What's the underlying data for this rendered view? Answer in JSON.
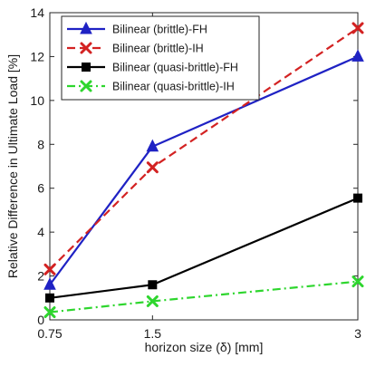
{
  "chart_data": {
    "type": "line",
    "xlabel": "horizon size (δ) [mm]",
    "ylabel": "Relative Difference in Ultimate Load [%]",
    "x": [
      0.75,
      1.5,
      3
    ],
    "x_tick_labels": [
      "0.75",
      "1.5",
      "3"
    ],
    "xlim": [
      0.75,
      3
    ],
    "ylim": [
      0,
      14
    ],
    "y_ticks": [
      0,
      2,
      4,
      6,
      8,
      10,
      12,
      14
    ],
    "y_tick_labels": [
      "0",
      "2",
      "4",
      "6",
      "8",
      "10",
      "12",
      "14"
    ],
    "grid": false,
    "legend_position": "top-left",
    "series": [
      {
        "name": "Bilinear (brittle)-FH",
        "values": [
          1.6,
          7.9,
          12.0
        ],
        "color": "#1f22c4",
        "line_style": "solid",
        "marker": "triangle"
      },
      {
        "name": "Bilinear (brittle)-IH",
        "values": [
          2.3,
          6.95,
          13.3
        ],
        "color": "#d32222",
        "line_style": "dashed",
        "marker": "x"
      },
      {
        "name": "Bilinear (quasi-brittle)-FH",
        "values": [
          1.0,
          1.6,
          5.55
        ],
        "color": "#000000",
        "line_style": "solid",
        "marker": "square"
      },
      {
        "name": "Bilinear (quasi-brittle)-IH",
        "values": [
          0.35,
          0.85,
          1.75
        ],
        "color": "#2ed62e",
        "line_style": "dashdot",
        "marker": "x"
      }
    ]
  }
}
